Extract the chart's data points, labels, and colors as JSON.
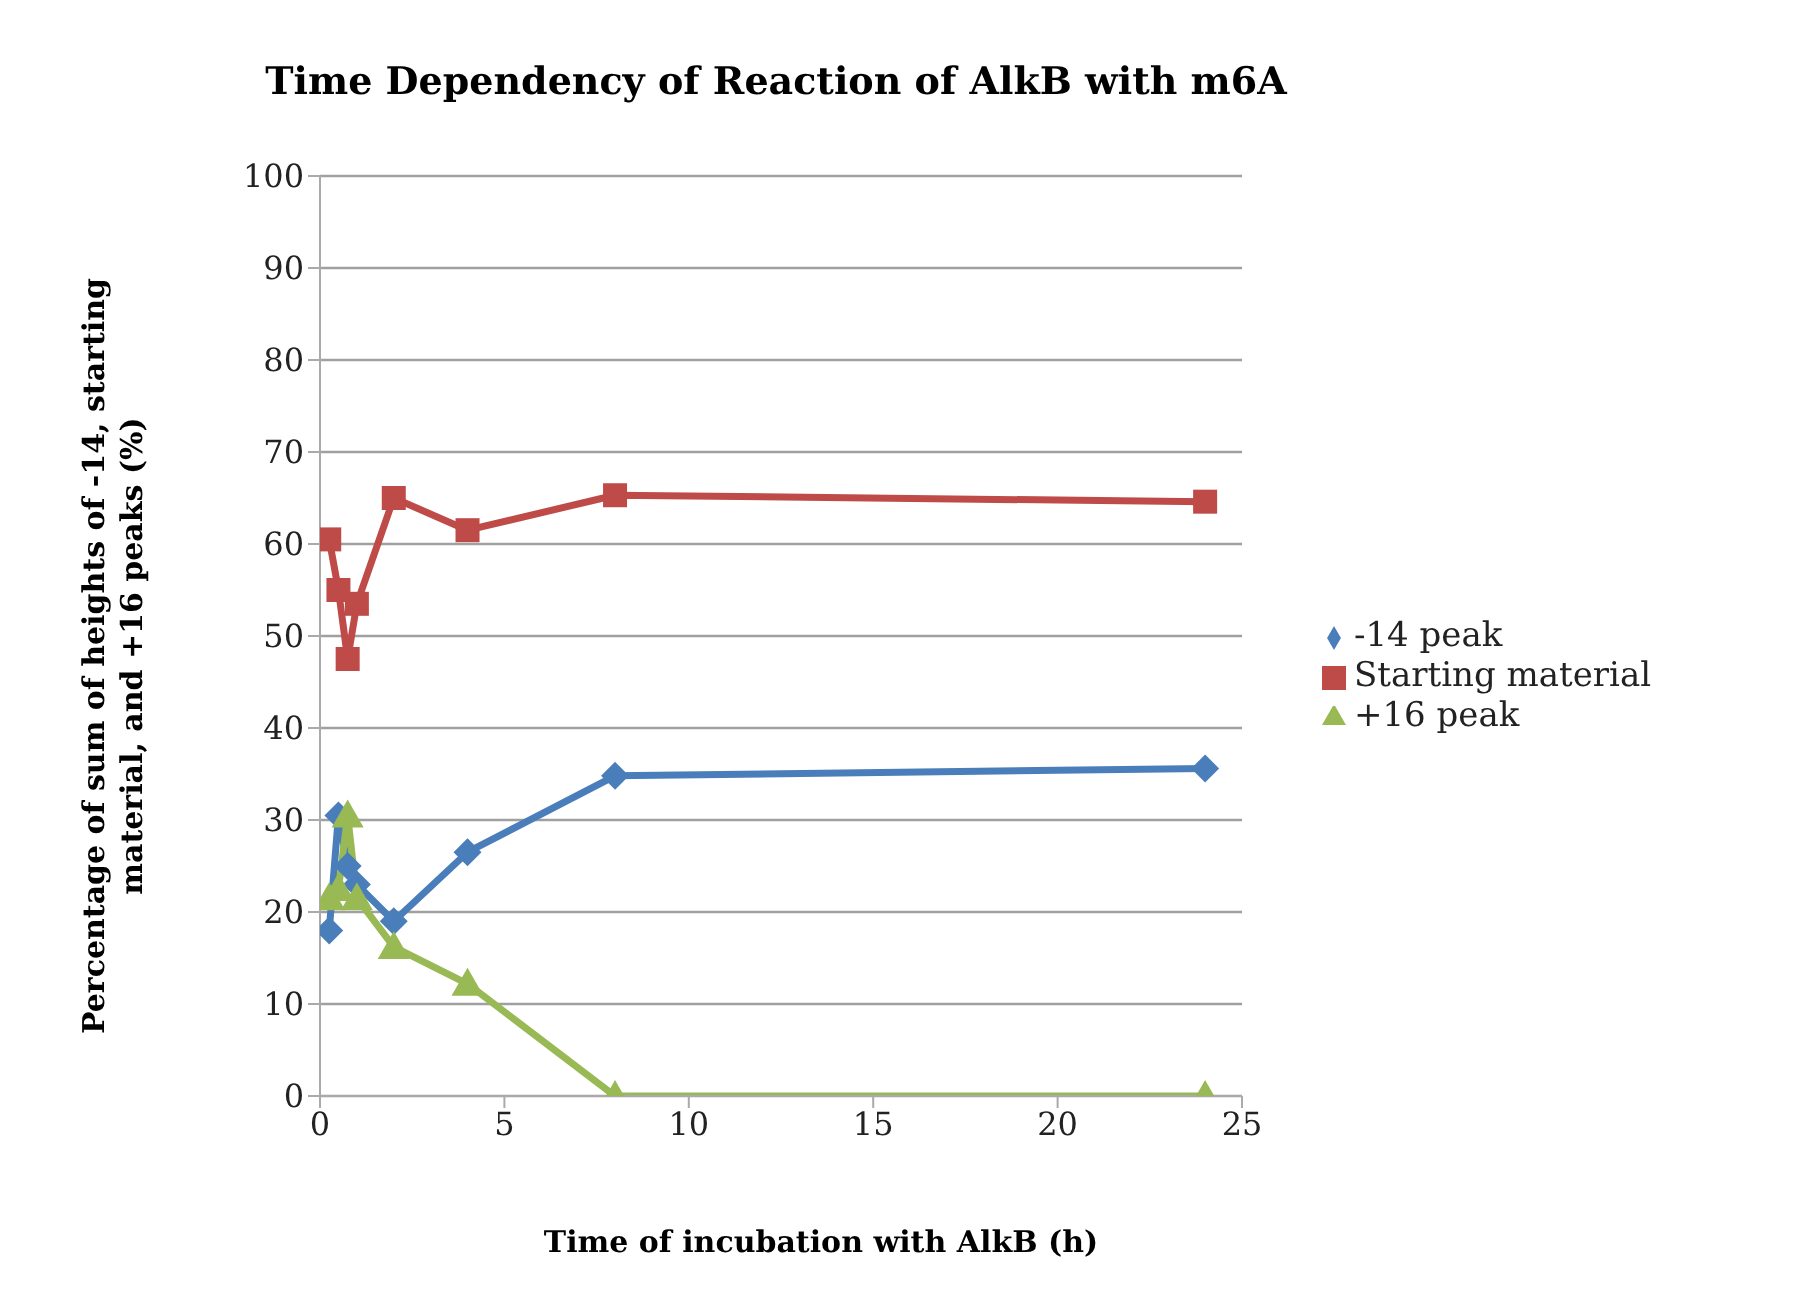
{
  "chart_data": {
    "type": "line",
    "title": "Time Dependency of Reaction of AlkB with m6A",
    "xlabel": "Time of incubation with AlkB (h)",
    "ylabel": "Percentage of sum of heights of -14, starting\nmaterial, and +16 peaks (%)",
    "x": [
      0.25,
      0.5,
      0.75,
      1,
      2,
      4,
      8,
      24
    ],
    "series": [
      {
        "name": "-14 peak",
        "color": "#4a7ebb",
        "marker": "diamond",
        "values": [
          18,
          30.5,
          25,
          23,
          19,
          26.5,
          34.8,
          35.6
        ]
      },
      {
        "name": "Starting material",
        "color": "#be4b48",
        "marker": "square",
        "values": [
          60.5,
          55,
          47.5,
          53.5,
          65,
          61.5,
          65.3,
          64.6
        ]
      },
      {
        "name": "+16 peak",
        "color": "#98b954",
        "marker": "triangle",
        "values": [
          21.5,
          22.5,
          30.5,
          21.5,
          16.2,
          12.2,
          0,
          0
        ]
      }
    ],
    "xlim": [
      0,
      25
    ],
    "xticks": [
      0,
      5,
      10,
      15,
      20,
      25
    ],
    "ylim": [
      0,
      100
    ],
    "yticks": [
      0,
      10,
      20,
      30,
      40,
      50,
      60,
      70,
      80,
      90,
      100
    ],
    "grid": "y",
    "legend": "right",
    "line_style": "solid"
  }
}
